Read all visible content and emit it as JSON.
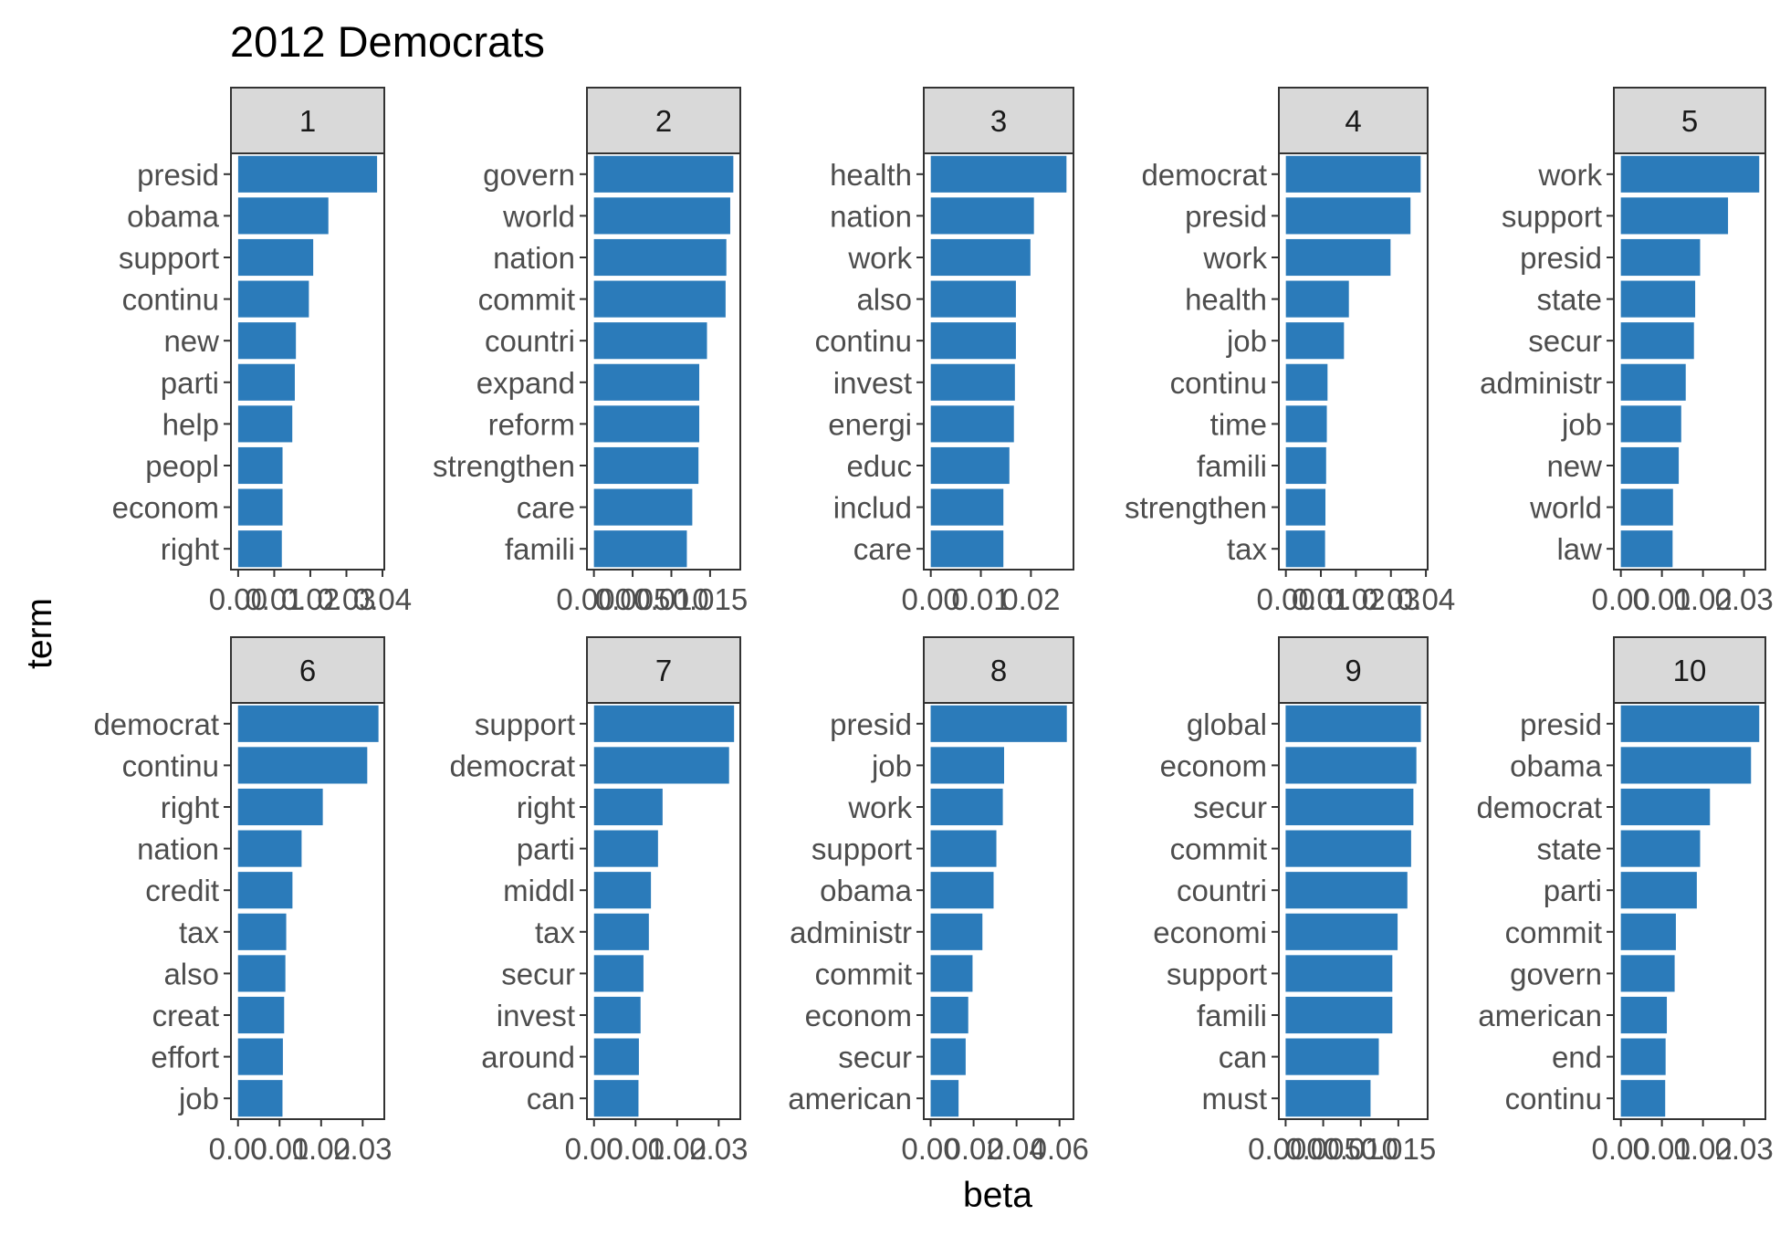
{
  "chart_data": {
    "type": "bar",
    "orientation": "horizontal",
    "title": "2012 Democrats",
    "xlabel": "beta",
    "ylabel": "term",
    "colors": {
      "bar": "#2b7bba",
      "strip": "#d9d9d9",
      "text": "#4d4d4d"
    },
    "grid": false,
    "panels": [
      {
        "label": "1",
        "xticks": [
          0.0,
          0.01,
          0.02,
          0.03,
          0.04
        ],
        "tick_labels": [
          "0.00",
          "0.01",
          "0.02",
          "0.03",
          "0.04"
        ],
        "xlim": [
          -0.002,
          0.0405
        ],
        "categories": [
          "presid",
          "obama",
          "support",
          "continu",
          "new",
          "parti",
          "help",
          "peopl",
          "econom",
          "right"
        ],
        "values": [
          0.0385,
          0.025,
          0.0208,
          0.0196,
          0.016,
          0.0157,
          0.015,
          0.0123,
          0.0123,
          0.0121
        ]
      },
      {
        "label": "2",
        "xticks": [
          0.0,
          0.005,
          0.01,
          0.015
        ],
        "tick_labels": [
          "0.000",
          "0.005",
          "0.010",
          "0.015"
        ],
        "xlim": [
          -0.0009,
          0.0189
        ],
        "categories": [
          "govern",
          "world",
          "nation",
          "commit",
          "countri",
          "expand",
          "reform",
          "strengthen",
          "care",
          "famili"
        ],
        "values": [
          0.018,
          0.0176,
          0.0171,
          0.017,
          0.0146,
          0.0136,
          0.0136,
          0.0135,
          0.0127,
          0.012
        ]
      },
      {
        "label": "3",
        "xticks": [
          0.0,
          0.01,
          0.02
        ],
        "tick_labels": [
          "0.00",
          "0.01",
          "0.02"
        ],
        "xlim": [
          -0.0014,
          0.0285
        ],
        "categories": [
          "health",
          "nation",
          "work",
          "also",
          "continu",
          "invest",
          "energi",
          "educ",
          "includ",
          "care"
        ],
        "values": [
          0.0271,
          0.0206,
          0.0199,
          0.017,
          0.017,
          0.0168,
          0.0166,
          0.0157,
          0.0145,
          0.0145
        ]
      },
      {
        "label": "4",
        "xticks": [
          0.0,
          0.01,
          0.02,
          0.03,
          0.04
        ],
        "tick_labels": [
          "0.00",
          "0.01",
          "0.02",
          "0.03",
          "0.04"
        ],
        "xlim": [
          -0.002,
          0.0405
        ],
        "categories": [
          "democrat",
          "presid",
          "work",
          "health",
          "job",
          "continu",
          "time",
          "famili",
          "strengthen",
          "tax"
        ],
        "values": [
          0.0385,
          0.0356,
          0.0299,
          0.018,
          0.0166,
          0.0119,
          0.0117,
          0.0115,
          0.0113,
          0.0112
        ]
      },
      {
        "label": "5",
        "xticks": [
          0.0,
          0.01,
          0.02,
          0.03
        ],
        "tick_labels": [
          "0.00",
          "0.01",
          "0.02",
          "0.03"
        ],
        "xlim": [
          -0.0017,
          0.0352
        ],
        "categories": [
          "work",
          "support",
          "presid",
          "state",
          "secur",
          "administr",
          "job",
          "new",
          "world",
          "law"
        ],
        "values": [
          0.0337,
          0.0261,
          0.0193,
          0.0181,
          0.0178,
          0.0158,
          0.0147,
          0.0141,
          0.0127,
          0.0126
        ]
      },
      {
        "label": "6",
        "xticks": [
          0.0,
          0.01,
          0.02,
          0.03
        ],
        "tick_labels": [
          "0.00",
          "0.01",
          "0.02",
          "0.03"
        ],
        "xlim": [
          -0.0017,
          0.0352
        ],
        "categories": [
          "democrat",
          "continu",
          "right",
          "nation",
          "credit",
          "tax",
          "also",
          "creat",
          "effort",
          "job"
        ],
        "values": [
          0.0338,
          0.0311,
          0.0204,
          0.0153,
          0.0131,
          0.0116,
          0.0114,
          0.0111,
          0.0108,
          0.0107
        ]
      },
      {
        "label": "7",
        "xticks": [
          0.0,
          0.01,
          0.02,
          0.03
        ],
        "tick_labels": [
          "0.00",
          "0.01",
          "0.02",
          "0.03"
        ],
        "xlim": [
          -0.0017,
          0.0352
        ],
        "categories": [
          "support",
          "democrat",
          "right",
          "parti",
          "middl",
          "tax",
          "secur",
          "invest",
          "around",
          "can"
        ],
        "values": [
          0.0337,
          0.0325,
          0.0165,
          0.0154,
          0.0137,
          0.0132,
          0.0119,
          0.0112,
          0.0108,
          0.0107
        ]
      },
      {
        "label": "8",
        "xticks": [
          0.0,
          0.02,
          0.04,
          0.06
        ],
        "tick_labels": [
          "0.00",
          "0.02",
          "0.04",
          "0.06"
        ],
        "xlim": [
          -0.0032,
          0.0665
        ],
        "categories": [
          "presid",
          "job",
          "work",
          "support",
          "obama",
          "administr",
          "commit",
          "econom",
          "secur",
          "american"
        ],
        "values": [
          0.0634,
          0.0342,
          0.0336,
          0.0306,
          0.0293,
          0.0241,
          0.0195,
          0.0175,
          0.0163,
          0.013
        ]
      },
      {
        "label": "9",
        "xticks": [
          0.0,
          0.005,
          0.01,
          0.015
        ],
        "tick_labels": [
          "0.000",
          "0.005",
          "0.010",
          "0.015"
        ],
        "xlim": [
          -0.0009,
          0.0189
        ],
        "categories": [
          "global",
          "econom",
          "secur",
          "commit",
          "countri",
          "economi",
          "support",
          "famili",
          "can",
          "must"
        ],
        "values": [
          0.018,
          0.0174,
          0.017,
          0.0167,
          0.0162,
          0.0149,
          0.0142,
          0.0142,
          0.0124,
          0.0113
        ]
      },
      {
        "label": "10",
        "xticks": [
          0.0,
          0.01,
          0.02,
          0.03
        ],
        "tick_labels": [
          "0.00",
          "0.01",
          "0.02",
          "0.03"
        ],
        "xlim": [
          -0.0017,
          0.0352
        ],
        "categories": [
          "presid",
          "obama",
          "democrat",
          "state",
          "parti",
          "commit",
          "govern",
          "american",
          "end",
          "continu"
        ],
        "values": [
          0.0337,
          0.0317,
          0.0217,
          0.0193,
          0.0185,
          0.0134,
          0.0131,
          0.0112,
          0.0109,
          0.0108
        ]
      }
    ]
  }
}
